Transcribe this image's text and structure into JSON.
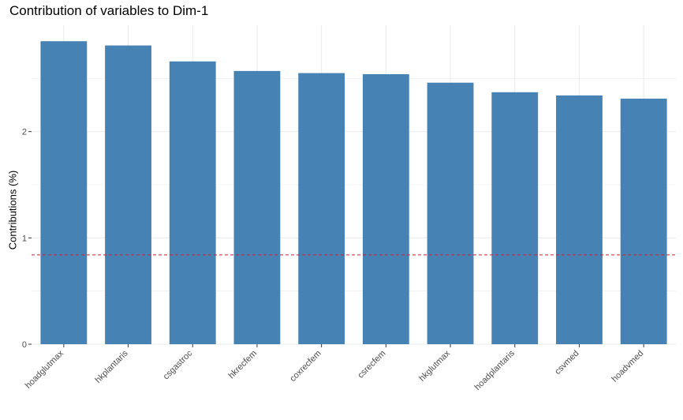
{
  "chart_data": {
    "type": "bar",
    "title": "Contribution of variables to Dim-1",
    "xlabel": "",
    "ylabel": "Contributions (%)",
    "categories": [
      "hoadglutmax",
      "hkplantaris",
      "csgastroc",
      "hkrecfem",
      "coxrecfem",
      "csrecfem",
      "hkglutmax",
      "hoadplantaris",
      "csvmed",
      "hoadvmed"
    ],
    "values": [
      2.85,
      2.81,
      2.66,
      2.57,
      2.55,
      2.54,
      2.46,
      2.37,
      2.34,
      2.31
    ],
    "reference_line": 0.84,
    "ylim": [
      0,
      3.0
    ],
    "yticks": [
      0,
      1,
      2
    ],
    "grid": true,
    "legend": "none",
    "colors": {
      "bar": "#4682B4",
      "reference_line": "#CC2233",
      "grid": "#EBEBEB"
    }
  }
}
